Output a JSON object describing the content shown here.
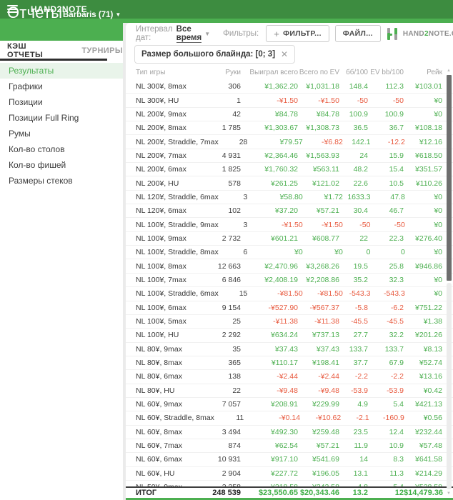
{
  "app_bar": {
    "title": "HAND2NOTE"
  },
  "sidebar": {
    "title": "Отчеты",
    "account": "Barbaris (71)",
    "account_caret": "▼",
    "tabs": [
      {
        "label": "КЭШ ОТЧЕТЫ",
        "active": true
      },
      {
        "label": "ТУРНИРЫ",
        "active": false
      }
    ],
    "items": [
      {
        "label": "Результаты",
        "active": true
      },
      {
        "label": "Графики",
        "active": false
      },
      {
        "label": "Позиции",
        "active": false
      },
      {
        "label": "Позиции Full Ring",
        "active": false
      },
      {
        "label": "Румы",
        "active": false
      },
      {
        "label": "Кол-во столов",
        "active": false
      },
      {
        "label": "Кол-во фишей",
        "active": false
      },
      {
        "label": "Размеры стеков",
        "active": false
      }
    ]
  },
  "toolbar": {
    "date_label": "Интервал дат:",
    "date_value": "Все время",
    "date_caret": "▼",
    "filters_label": "Фильтры:",
    "plus_icon": "+",
    "add_filter_label": "ФИЛЬТР...",
    "file_label": "ФАЙЛ...",
    "logo": {
      "part1": "HAND",
      "part2": "2",
      "part3": "NOTE.COM"
    }
  },
  "filter_chip": {
    "label": "Размер большого блайнда: [0; 3]",
    "close_icon": "✕"
  },
  "table": {
    "columns": [
      "Тип игры",
      "Руки",
      "Выиграл всего",
      "Всего по EV",
      "бб/100",
      "EV bb/100",
      "Рейк"
    ],
    "rows": [
      [
        "NL 300¥, 8max",
        "306",
        "¥1,362.20",
        "¥1,031.18",
        "148.4",
        "112.3",
        "¥103.01"
      ],
      [
        "NL 300¥, HU",
        "1",
        "-¥1.50",
        "-¥1.50",
        "-50",
        "-50",
        "¥0"
      ],
      [
        "NL 200¥, 9max",
        "42",
        "¥84.78",
        "¥84.78",
        "100.9",
        "100.9",
        "¥0"
      ],
      [
        "NL 200¥, 8max",
        "1 785",
        "¥1,303.67",
        "¥1,308.73",
        "36.5",
        "36.7",
        "¥108.18"
      ],
      [
        "NL 200¥, Straddle, 7max",
        "28",
        "¥79.57",
        "-¥6.82",
        "142.1",
        "-12.2",
        "¥12.16"
      ],
      [
        "NL 200¥, 7max",
        "4 931",
        "¥2,364.46",
        "¥1,563.93",
        "24",
        "15.9",
        "¥618.50"
      ],
      [
        "NL 200¥, 6max",
        "1 825",
        "¥1,760.32",
        "¥563.11",
        "48.2",
        "15.4",
        "¥351.57"
      ],
      [
        "NL 200¥, HU",
        "578",
        "¥261.25",
        "¥121.02",
        "22.6",
        "10.5",
        "¥110.26"
      ],
      [
        "NL 120¥, Straddle, 6max",
        "3",
        "¥58.80",
        "¥1.72",
        "1633.3",
        "47.8",
        "¥0"
      ],
      [
        "NL 120¥, 6max",
        "102",
        "¥37.20",
        "¥57.21",
        "30.4",
        "46.7",
        "¥0"
      ],
      [
        "NL 100¥, Straddle, 9max",
        "3",
        "-¥1.50",
        "-¥1.50",
        "-50",
        "-50",
        "¥0"
      ],
      [
        "NL 100¥, 9max",
        "2 732",
        "¥601.21",
        "¥608.77",
        "22",
        "22.3",
        "¥276.40"
      ],
      [
        "NL 100¥, Straddle, 8max",
        "6",
        "¥0",
        "¥0",
        "0",
        "0",
        "¥0"
      ],
      [
        "NL 100¥, 8max",
        "12 663",
        "¥2,470.96",
        "¥3,268.26",
        "19.5",
        "25.8",
        "¥946.86"
      ],
      [
        "NL 100¥, 7max",
        "6 846",
        "¥2,408.19",
        "¥2,208.86",
        "35.2",
        "32.3",
        "¥0"
      ],
      [
        "NL 100¥, Straddle, 6max",
        "15",
        "-¥81.50",
        "-¥81.50",
        "-543.3",
        "-543.3",
        "¥0"
      ],
      [
        "NL 100¥, 6max",
        "9 154",
        "-¥527.90",
        "-¥567.37",
        "-5.8",
        "-6.2",
        "¥751.22"
      ],
      [
        "NL 100¥, 5max",
        "25",
        "-¥11.38",
        "-¥11.38",
        "-45.5",
        "-45.5",
        "¥1.38"
      ],
      [
        "NL 100¥, HU",
        "2 292",
        "¥634.24",
        "¥737.13",
        "27.7",
        "32.2",
        "¥201.26"
      ],
      [
        "NL 80¥, 9max",
        "35",
        "¥37.43",
        "¥37.43",
        "133.7",
        "133.7",
        "¥8.13"
      ],
      [
        "NL 80¥, 8max",
        "365",
        "¥110.17",
        "¥198.41",
        "37.7",
        "67.9",
        "¥52.74"
      ],
      [
        "NL 80¥, 6max",
        "138",
        "-¥2.44",
        "-¥2.44",
        "-2.2",
        "-2.2",
        "¥13.16"
      ],
      [
        "NL 80¥, HU",
        "22",
        "-¥9.48",
        "-¥9.48",
        "-53.9",
        "-53.9",
        "¥0.42"
      ],
      [
        "NL 60¥, 9max",
        "7 057",
        "¥208.91",
        "¥229.99",
        "4.9",
        "5.4",
        "¥421.13"
      ],
      [
        "NL 60¥, Straddle, 8max",
        "11",
        "-¥0.14",
        "-¥10.62",
        "-2.1",
        "-160.9",
        "¥0.56"
      ],
      [
        "NL 60¥, 8max",
        "3 494",
        "¥492.30",
        "¥259.48",
        "23.5",
        "12.4",
        "¥232.44"
      ],
      [
        "NL 60¥, 7max",
        "874",
        "¥62.54",
        "¥57.21",
        "11.9",
        "10.9",
        "¥57.48"
      ],
      [
        "NL 60¥, 6max",
        "10 931",
        "¥917.10",
        "¥541.69",
        "14",
        "8.3",
        "¥641.58"
      ],
      [
        "NL 60¥, HU",
        "2 904",
        "¥227.72",
        "¥196.05",
        "13.1",
        "11.3",
        "¥214.29"
      ],
      [
        "NL 50¥, 9max",
        "2 258",
        "¥218.58",
        "¥242.58",
        "4.8",
        "5.4",
        "¥528.58"
      ]
    ],
    "total": {
      "label": "ИТОГ",
      "hands": "248 539",
      "won": "$23,550.65",
      "ev": "$20,343.46",
      "bb100": "13.2",
      "ev_bb100": "12",
      "rake": "$14,479.36"
    }
  },
  "colors": {
    "accent_green": "#4caf50",
    "appbar_green": "#3d8c40",
    "positive": "#4caf50",
    "negative": "#e85b40"
  }
}
